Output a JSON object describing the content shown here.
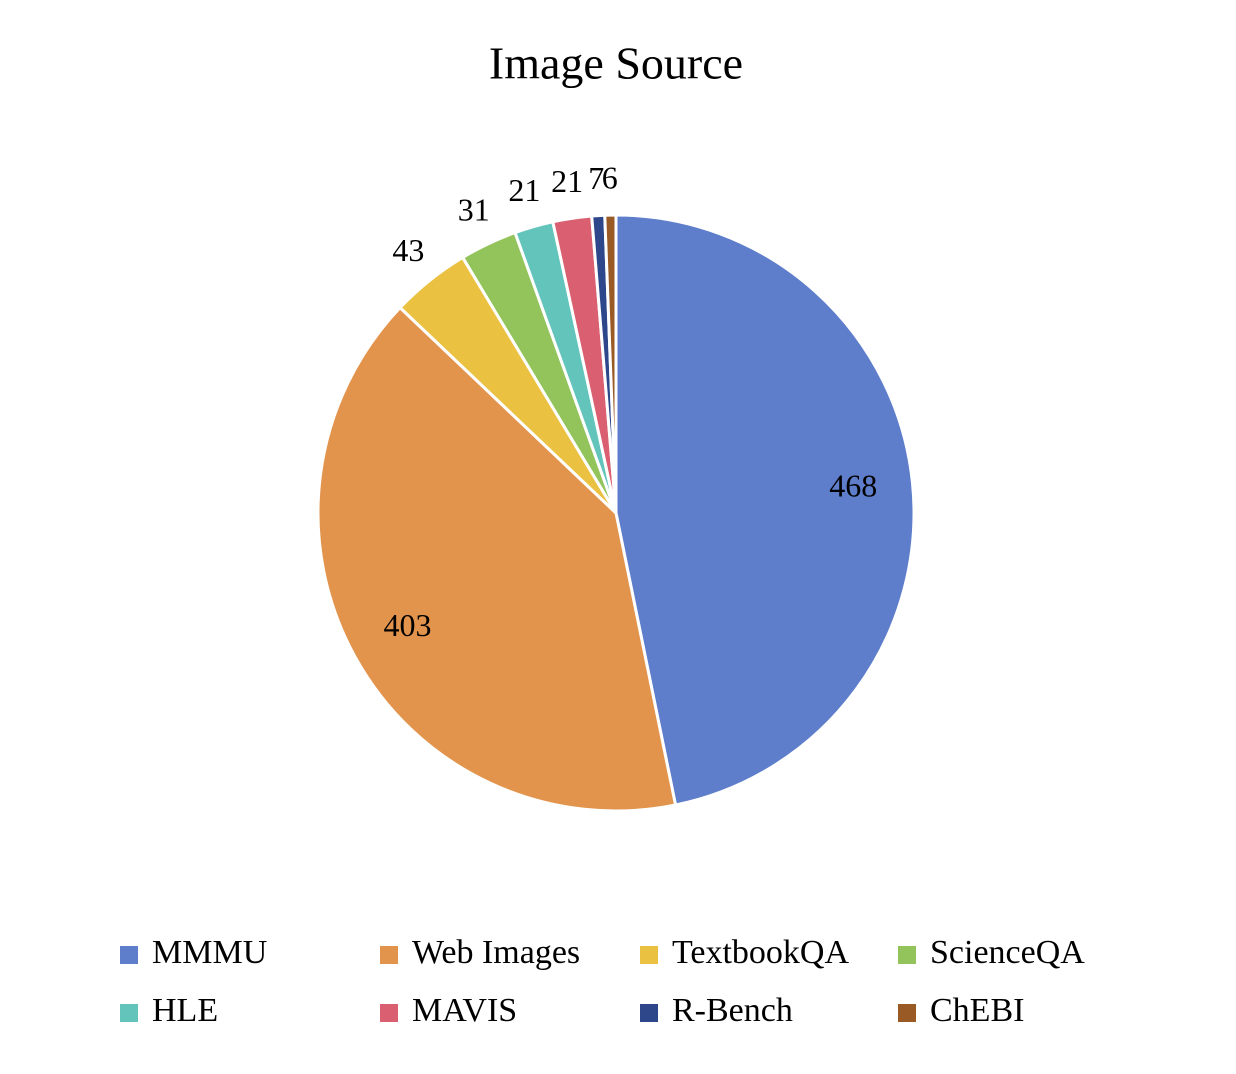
{
  "chart_data": {
    "type": "pie",
    "title": "Image Source",
    "categories": [
      "MMMU",
      "Web Images",
      "TextbookQA",
      "ScienceQA",
      "HLE",
      "MAVIS",
      "R-Bench",
      "ChEBI"
    ],
    "values": [
      468,
      403,
      43,
      31,
      21,
      21,
      7,
      6
    ],
    "colors": [
      "#5e7ecb",
      "#e3944c",
      "#ebc142",
      "#93c45c",
      "#62c4bb",
      "#da6071",
      "#2d478a",
      "#9a5a25"
    ],
    "legend": "bottom"
  }
}
